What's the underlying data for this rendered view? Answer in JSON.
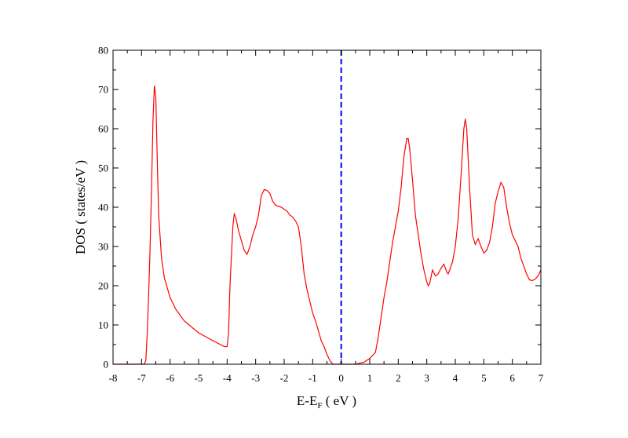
{
  "chart_data": {
    "type": "line",
    "ylabel": "DOS ( states/eV )",
    "xlabel": {
      "main": "E-E",
      "sub": "F",
      "rest": " ( eV )"
    },
    "xlim": [
      -8,
      7
    ],
    "xticks": [
      -8,
      -7,
      -6,
      -5,
      -4,
      -3,
      -2,
      -1,
      0,
      1,
      2,
      3,
      4,
      5,
      6,
      7
    ],
    "ylim": [
      0,
      80
    ],
    "yticks": [
      0,
      10,
      20,
      30,
      40,
      50,
      60,
      70,
      80
    ],
    "vline": {
      "x": 0,
      "color": "#0000ff"
    },
    "series": [
      {
        "name": "DOS",
        "color": "#ff0000",
        "x": [
          -8,
          -6.9,
          -6.85,
          -6.8,
          -6.75,
          -6.7,
          -6.65,
          -6.6,
          -6.55,
          -6.5,
          -6.45,
          -6.4,
          -6.3,
          -6.2,
          -6.0,
          -5.8,
          -5.5,
          -5.0,
          -4.5,
          -4.1,
          -4.0,
          -3.95,
          -3.9,
          -3.8,
          -3.75,
          -3.7,
          -3.6,
          -3.4,
          -3.3,
          -3.2,
          -3.1,
          -3.0,
          -2.9,
          -2.8,
          -2.7,
          -2.6,
          -2.5,
          -2.4,
          -2.3,
          -2.1,
          -1.9,
          -1.8,
          -1.7,
          -1.6,
          -1.5,
          -1.4,
          -1.3,
          -1.2,
          -1.1,
          -1.0,
          -0.9,
          -0.8,
          -0.7,
          -0.6,
          -0.5,
          -0.4,
          -0.3,
          0.0,
          0.5,
          0.8,
          1.0,
          1.2,
          1.3,
          1.4,
          1.5,
          1.6,
          1.7,
          1.8,
          1.9,
          2.0,
          2.1,
          2.2,
          2.3,
          2.35,
          2.4,
          2.5,
          2.6,
          2.7,
          2.8,
          2.9,
          3.0,
          3.05,
          3.1,
          3.2,
          3.3,
          3.4,
          3.5,
          3.6,
          3.7,
          3.75,
          3.8,
          3.9,
          4.0,
          4.1,
          4.2,
          4.3,
          4.35,
          4.4,
          4.5,
          4.6,
          4.7,
          4.8,
          4.9,
          5.0,
          5.1,
          5.2,
          5.3,
          5.4,
          5.5,
          5.6,
          5.7,
          5.8,
          5.9,
          6.0,
          6.1,
          6.2,
          6.3,
          6.4,
          6.5,
          6.6,
          6.7,
          6.8,
          6.9,
          7.0
        ],
        "values": [
          0,
          0,
          1,
          8,
          18,
          30,
          45,
          62,
          71,
          68,
          52,
          38,
          27,
          22,
          17,
          14,
          11,
          8,
          6,
          4.5,
          4.5,
          8,
          20,
          35,
          38.3,
          37.5,
          34,
          29,
          28,
          30,
          33,
          35,
          38,
          43,
          44.5,
          44.3,
          43.5,
          41.5,
          40.5,
          40,
          39,
          38,
          37.5,
          36.5,
          35,
          30,
          23,
          19,
          16,
          13,
          11,
          8.5,
          6,
          4.5,
          2.5,
          1,
          0,
          0,
          0,
          0.5,
          1.5,
          3,
          7,
          12,
          17,
          21,
          26,
          31,
          35,
          39,
          45,
          53,
          57.5,
          57.5,
          55,
          47,
          38,
          33,
          28,
          24,
          21,
          20,
          20.5,
          24,
          22.5,
          23,
          24.5,
          25.5,
          23.5,
          23,
          24,
          26,
          30,
          37,
          48,
          60,
          62.5,
          60,
          45,
          33,
          30.5,
          32,
          30,
          28.3,
          29,
          31,
          35,
          41,
          44,
          46.3,
          45,
          40,
          36,
          33,
          31.5,
          30,
          27,
          25,
          23,
          21.5,
          21.3,
          21.7,
          22.5,
          24
        ]
      }
    ]
  }
}
